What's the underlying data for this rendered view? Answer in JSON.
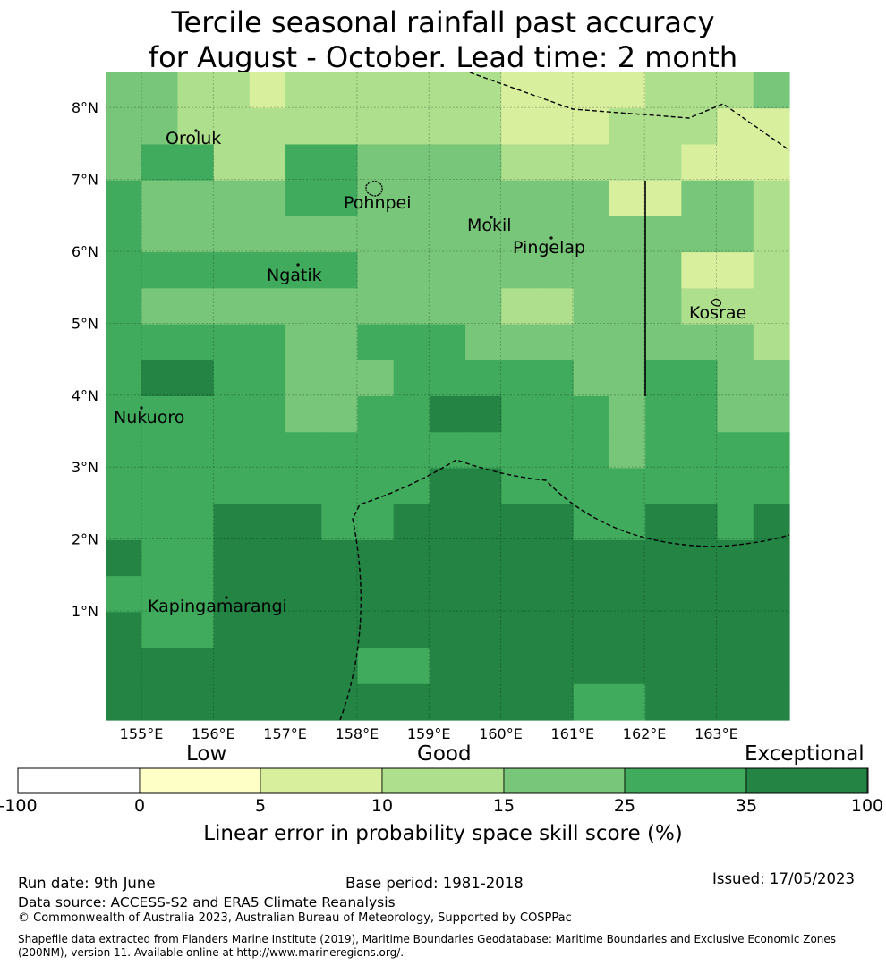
{
  "title": {
    "line1": "Tercile seasonal rainfall past accuracy",
    "line2": "for August - October. Lead time: 2 month"
  },
  "map": {
    "lat_ticks": [
      "1°N",
      "2°N",
      "3°N",
      "4°N",
      "5°N",
      "6°N",
      "7°N",
      "8°N"
    ],
    "lon_ticks": [
      "155°E",
      "156°E",
      "157°E",
      "158°E",
      "159°E",
      "160°E",
      "161°E",
      "162°E",
      "163°E"
    ],
    "places": [
      "Oroluk",
      "Pohnpei",
      "Mokil",
      "Pingelap",
      "Ngatik",
      "Kosrae",
      "Nukuoro",
      "Kapingamarangi"
    ],
    "color_levels": [
      "#ffffff",
      "#fefec7",
      "#d8ef9e",
      "#addf8c",
      "#78c679",
      "#41ab5d",
      "#238443"
    ],
    "grid": [
      [
        4,
        4,
        3,
        3,
        2,
        3,
        3,
        3,
        3,
        3,
        3,
        2,
        2,
        2,
        2,
        3,
        3,
        3,
        4
      ],
      [
        4,
        4,
        3,
        3,
        3,
        3,
        3,
        3,
        3,
        3,
        3,
        2,
        2,
        2,
        3,
        3,
        3,
        2,
        2
      ],
      [
        4,
        5,
        5,
        3,
        3,
        5,
        5,
        4,
        4,
        4,
        4,
        3,
        3,
        3,
        3,
        3,
        2,
        2,
        2
      ],
      [
        5,
        4,
        4,
        4,
        4,
        5,
        5,
        4,
        4,
        4,
        4,
        4,
        4,
        4,
        2,
        2,
        4,
        4,
        3
      ],
      [
        5,
        4,
        4,
        4,
        4,
        4,
        4,
        4,
        4,
        4,
        4,
        4,
        4,
        4,
        4,
        4,
        4,
        4,
        3
      ],
      [
        5,
        5,
        5,
        5,
        5,
        5,
        5,
        4,
        4,
        4,
        4,
        4,
        4,
        4,
        4,
        4,
        2,
        2,
        3
      ],
      [
        5,
        4,
        4,
        4,
        4,
        4,
        4,
        4,
        4,
        4,
        4,
        3,
        3,
        4,
        4,
        4,
        3,
        3,
        3
      ],
      [
        5,
        5,
        5,
        5,
        5,
        4,
        4,
        5,
        5,
        5,
        4,
        4,
        4,
        4,
        4,
        4,
        4,
        4,
        3
      ],
      [
        5,
        6,
        6,
        5,
        5,
        4,
        4,
        4,
        5,
        5,
        5,
        5,
        5,
        4,
        4,
        5,
        5,
        4,
        4
      ],
      [
        5,
        5,
        5,
        5,
        5,
        4,
        4,
        5,
        5,
        6,
        6,
        5,
        5,
        5,
        4,
        5,
        5,
        4,
        4
      ],
      [
        5,
        5,
        5,
        5,
        5,
        5,
        5,
        5,
        5,
        5,
        5,
        5,
        5,
        5,
        4,
        5,
        5,
        5,
        5
      ],
      [
        5,
        5,
        5,
        5,
        5,
        5,
        5,
        5,
        5,
        6,
        6,
        5,
        5,
        5,
        5,
        5,
        5,
        5,
        5
      ],
      [
        5,
        5,
        5,
        6,
        6,
        6,
        5,
        5,
        6,
        6,
        6,
        6,
        6,
        5,
        5,
        6,
        6,
        5,
        6
      ],
      [
        6,
        5,
        5,
        6,
        6,
        6,
        6,
        6,
        6,
        6,
        6,
        6,
        6,
        6,
        6,
        6,
        6,
        6,
        6
      ],
      [
        5,
        5,
        5,
        6,
        6,
        6,
        6,
        6,
        6,
        6,
        6,
        6,
        6,
        6,
        6,
        6,
        6,
        6,
        6
      ],
      [
        6,
        5,
        5,
        6,
        6,
        6,
        6,
        6,
        6,
        6,
        6,
        6,
        6,
        6,
        6,
        6,
        6,
        6,
        6
      ],
      [
        6,
        6,
        6,
        6,
        6,
        6,
        6,
        5,
        5,
        6,
        6,
        6,
        6,
        6,
        6,
        6,
        6,
        6,
        6
      ],
      [
        6,
        6,
        6,
        6,
        6,
        6,
        6,
        6,
        6,
        6,
        6,
        6,
        6,
        5,
        5,
        6,
        6,
        6,
        6
      ]
    ]
  },
  "colorbar": {
    "categories": [
      "Low",
      "Good",
      "Exceptional"
    ],
    "ticks": [
      "-100",
      "0",
      "5",
      "10",
      "15",
      "25",
      "35",
      "100"
    ],
    "colors": [
      "#ffffff",
      "#fefec7",
      "#d8ef9e",
      "#addf8c",
      "#78c679",
      "#41ab5d",
      "#238443"
    ],
    "label": "Linear error in probability space skill score (%)"
  },
  "footer": {
    "run_date": "Run date: 9th June",
    "base_period": "Base period: 1981-2018",
    "issued": "Issued: 17/05/2023",
    "data_source": "Data source: ACCESS-S2 and ERA5 Climate Reanalysis",
    "copyright": "© Commonwealth of Australia 2023, Australian Bureau of Meteorology, Supported by COSPPac",
    "shapefile": "Shapefile data extracted from Flanders Marine Institute (2019), Maritime Boundaries Geodatabase: Maritime Boundaries and Exclusive Economic Zones (200NM), version 11. Available online at http://www.marineregions.org/."
  }
}
